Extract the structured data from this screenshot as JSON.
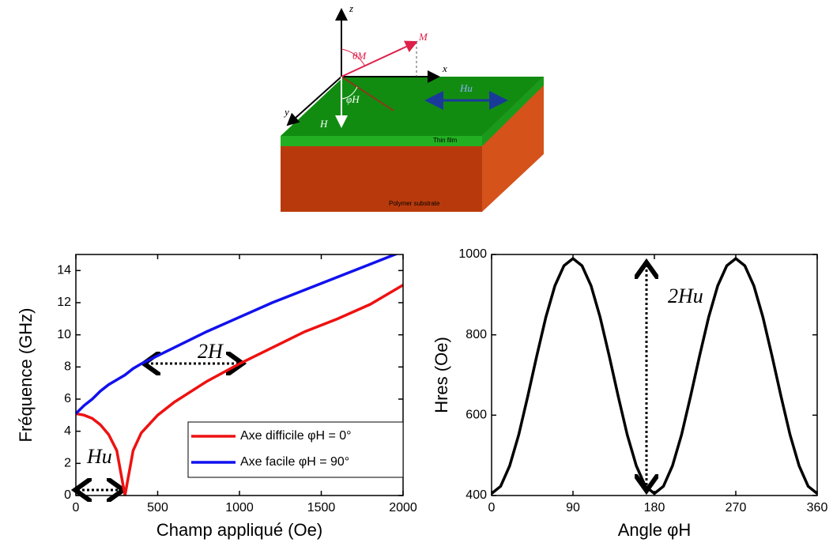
{
  "illustration": {
    "labels": [
      "z",
      "x",
      "y",
      "θM",
      "M",
      "Hu",
      "φH",
      "H",
      "Thin film",
      "Polymer substrate"
    ]
  },
  "chart_data": [
    {
      "type": "line",
      "xlabel": "Champ appliqué (Oe)",
      "ylabel": "Fréquence (GHz)",
      "x": [
        0,
        50,
        100,
        150,
        200,
        250,
        300,
        350,
        400,
        500,
        600,
        800,
        1000,
        1200,
        1400,
        1600,
        1800,
        2000
      ],
      "series": [
        {
          "name": "Axe difficile φH = 0°",
          "color": "#ee1111",
          "values": [
            5.1,
            5.0,
            4.8,
            4.4,
            3.8,
            2.8,
            0,
            2.8,
            3.9,
            5.0,
            5.8,
            7.1,
            8.2,
            9.2,
            10.2,
            11.0,
            11.9,
            13.1
          ]
        },
        {
          "name": "Axe facile φH = 90°",
          "color": "#1111ee",
          "values": [
            5.1,
            5.6,
            6.0,
            6.5,
            6.9,
            7.2,
            7.5,
            7.9,
            8.2,
            8.7,
            9.2,
            10.2,
            11.1,
            12.0,
            12.8,
            13.6,
            14.4,
            15.2
          ]
        }
      ],
      "xlim": [
        0,
        2000
      ],
      "xticks": [
        0,
        500,
        1000,
        1500,
        2000
      ],
      "ylim": [
        0,
        15
      ],
      "yticks": [
        0,
        2,
        4,
        6,
        8,
        10,
        12,
        14
      ],
      "legend": "lower right",
      "annotations": [
        "2H",
        "Hu"
      ]
    },
    {
      "type": "line",
      "xlabel": "Angle φH",
      "ylabel": "Hres (Oe)",
      "x": [
        0,
        10,
        20,
        30,
        40,
        50,
        60,
        70,
        80,
        90,
        100,
        110,
        120,
        130,
        140,
        150,
        160,
        170,
        180,
        190,
        200,
        210,
        220,
        230,
        240,
        250,
        260,
        270,
        280,
        290,
        300,
        310,
        320,
        330,
        340,
        350,
        360
      ],
      "series": [
        {
          "name": "Hres",
          "color": "#000000",
          "values": [
            405,
            423,
            474,
            551,
            647,
            748,
            844,
            922,
            972,
            990,
            972,
            922,
            844,
            748,
            647,
            551,
            474,
            423,
            405,
            423,
            474,
            551,
            647,
            748,
            844,
            922,
            972,
            990,
            972,
            922,
            844,
            748,
            647,
            551,
            474,
            423,
            405
          ]
        }
      ],
      "xlim": [
        0,
        360
      ],
      "xticks": [
        0,
        90,
        180,
        270,
        360
      ],
      "ylim": [
        400,
        1000
      ],
      "yticks": [
        400,
        600,
        800,
        1000
      ],
      "annotations": [
        "2Hu"
      ]
    }
  ]
}
